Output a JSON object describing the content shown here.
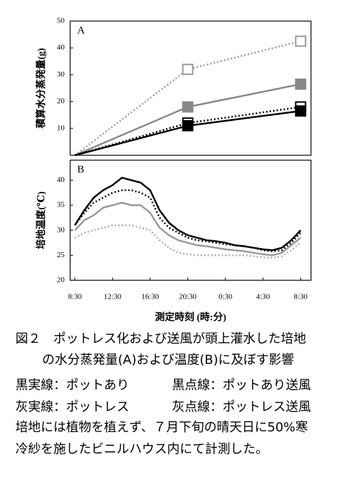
{
  "chart_data": [
    {
      "type": "line",
      "panel_label": "A",
      "y_label": "積算水分蒸発量(g)",
      "xlim": [
        -0.5,
        25.1
      ],
      "ylim": [
        0,
        50
      ],
      "yticks": [
        10,
        20,
        30,
        40,
        50
      ],
      "x": [
        0,
        12,
        24
      ],
      "series": [
        {
          "color": "#999999",
          "style": "dotted",
          "marker": "open",
          "values": [
            0,
            32,
            42.5
          ]
        },
        {
          "color": "#888888",
          "style": "solid",
          "marker": "filled",
          "values": [
            0,
            18,
            26.5
          ]
        },
        {
          "color": "#000000",
          "style": "dotted",
          "marker": "open",
          "values": [
            0,
            12,
            18
          ]
        },
        {
          "color": "#000000",
          "style": "solid",
          "marker": "filled",
          "values": [
            0,
            11,
            16.5
          ]
        }
      ]
    },
    {
      "type": "line",
      "panel_label": "B",
      "y_label": "培地温度(℃)",
      "x_label": "測定時刻 (時:分)",
      "xlim": [
        -0.5,
        25.1
      ],
      "ylim": [
        20,
        44
      ],
      "yticks": [
        20,
        25,
        30,
        35,
        40
      ],
      "xticks": [
        {
          "value": 0,
          "label": "8:30"
        },
        {
          "value": 4,
          "label": "12:30"
        },
        {
          "value": 8,
          "label": "16:30"
        },
        {
          "value": 12,
          "label": "20:30"
        },
        {
          "value": 16,
          "label": "0:30"
        },
        {
          "value": 20,
          "label": "4:30"
        },
        {
          "value": 24,
          "label": "8:30"
        }
      ],
      "x": [
        0,
        1,
        2,
        3,
        4,
        5,
        6,
        7,
        8,
        9,
        10,
        11,
        12,
        13,
        14,
        15,
        16,
        17,
        18,
        19,
        20,
        21,
        22,
        23,
        24
      ],
      "series": [
        {
          "color": "#aaaaaa",
          "style": "dotted",
          "values": [
            28.5,
            29.5,
            30,
            30.5,
            31,
            31,
            31,
            30.5,
            30,
            28,
            26.5,
            25.5,
            25.2,
            25,
            25,
            25,
            25,
            25,
            25,
            24.8,
            24.6,
            24.5,
            24.8,
            26,
            27.5
          ]
        },
        {
          "color": "#999999",
          "style": "solid",
          "values": [
            30,
            32,
            33,
            34.5,
            35,
            35.5,
            35,
            35,
            33.5,
            30.5,
            29,
            28,
            27.5,
            27,
            26.8,
            26.5,
            26.2,
            26,
            25.8,
            25.5,
            25.2,
            25,
            25.5,
            27,
            28.5
          ]
        },
        {
          "color": "#000000",
          "style": "dotted",
          "values": [
            31,
            33.5,
            35.5,
            36.5,
            37.5,
            38,
            38,
            37.5,
            36.5,
            32.5,
            30.5,
            29.5,
            28.5,
            28,
            27.8,
            27.5,
            27.2,
            27,
            26.8,
            26.5,
            26,
            25.8,
            26,
            27.5,
            29.5
          ]
        },
        {
          "color": "#000000",
          "style": "solid",
          "values": [
            31,
            34,
            36.5,
            38,
            39,
            40.5,
            40,
            39.5,
            38,
            34,
            31.5,
            30,
            29,
            28.5,
            28,
            27.8,
            27.5,
            27,
            26.8,
            26.5,
            26.2,
            26,
            26.5,
            28,
            30
          ]
        }
      ]
    }
  ],
  "caption": {
    "title": [
      "図２　ポットレス化および送風が頭上灌水した培地",
      "の水分蒸発量(A)および温度(B)に及ぼす影響"
    ],
    "notes": [
      [
        "黒実線：ポットあり",
        "黒点線：ポットあり送風"
      ],
      [
        "灰実線：ポットレス",
        "灰点線：ポットレス送風"
      ]
    ],
    "remark": [
      "培地には植物を植えず、７月下旬の晴天日に50%寒",
      "冷紗を施したビニルハウス内にて計測した。"
    ]
  }
}
